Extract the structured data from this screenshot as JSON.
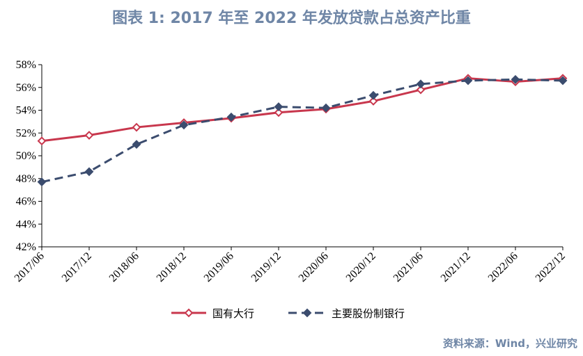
{
  "title": "图表 1:   2017 年至 2022 年发放贷款占总资产比重",
  "source": "资料来源：Wind，兴业研究",
  "chart_data": {
    "type": "line",
    "categories": [
      "2017/06",
      "2017/12",
      "2018/06",
      "2018/12",
      "2019/06",
      "2019/12",
      "2020/06",
      "2020/12",
      "2021/06",
      "2021/12",
      "2022/06",
      "2022/12"
    ],
    "y_tick_labels": [
      "42%",
      "44%",
      "46%",
      "48%",
      "50%",
      "52%",
      "54%",
      "56%",
      "58%"
    ],
    "ylim": [
      42,
      58
    ],
    "yticks": [
      42,
      44,
      46,
      48,
      50,
      52,
      54,
      56,
      58
    ],
    "grid": false,
    "legend_position": "bottom",
    "series": [
      {
        "name": "国有大行",
        "color": "#c8374d",
        "style": "solid",
        "marker": "diamond",
        "values": [
          51.3,
          51.8,
          52.5,
          52.9,
          53.3,
          53.8,
          54.1,
          54.8,
          55.8,
          56.8,
          56.5,
          56.8
        ]
      },
      {
        "name": "主要股份制银行",
        "color": "#3b4c6e",
        "style": "dashed",
        "marker": "diamond",
        "values": [
          47.7,
          48.6,
          51.0,
          52.7,
          53.4,
          54.3,
          54.2,
          55.3,
          56.3,
          56.6,
          56.7,
          56.6
        ]
      }
    ]
  }
}
